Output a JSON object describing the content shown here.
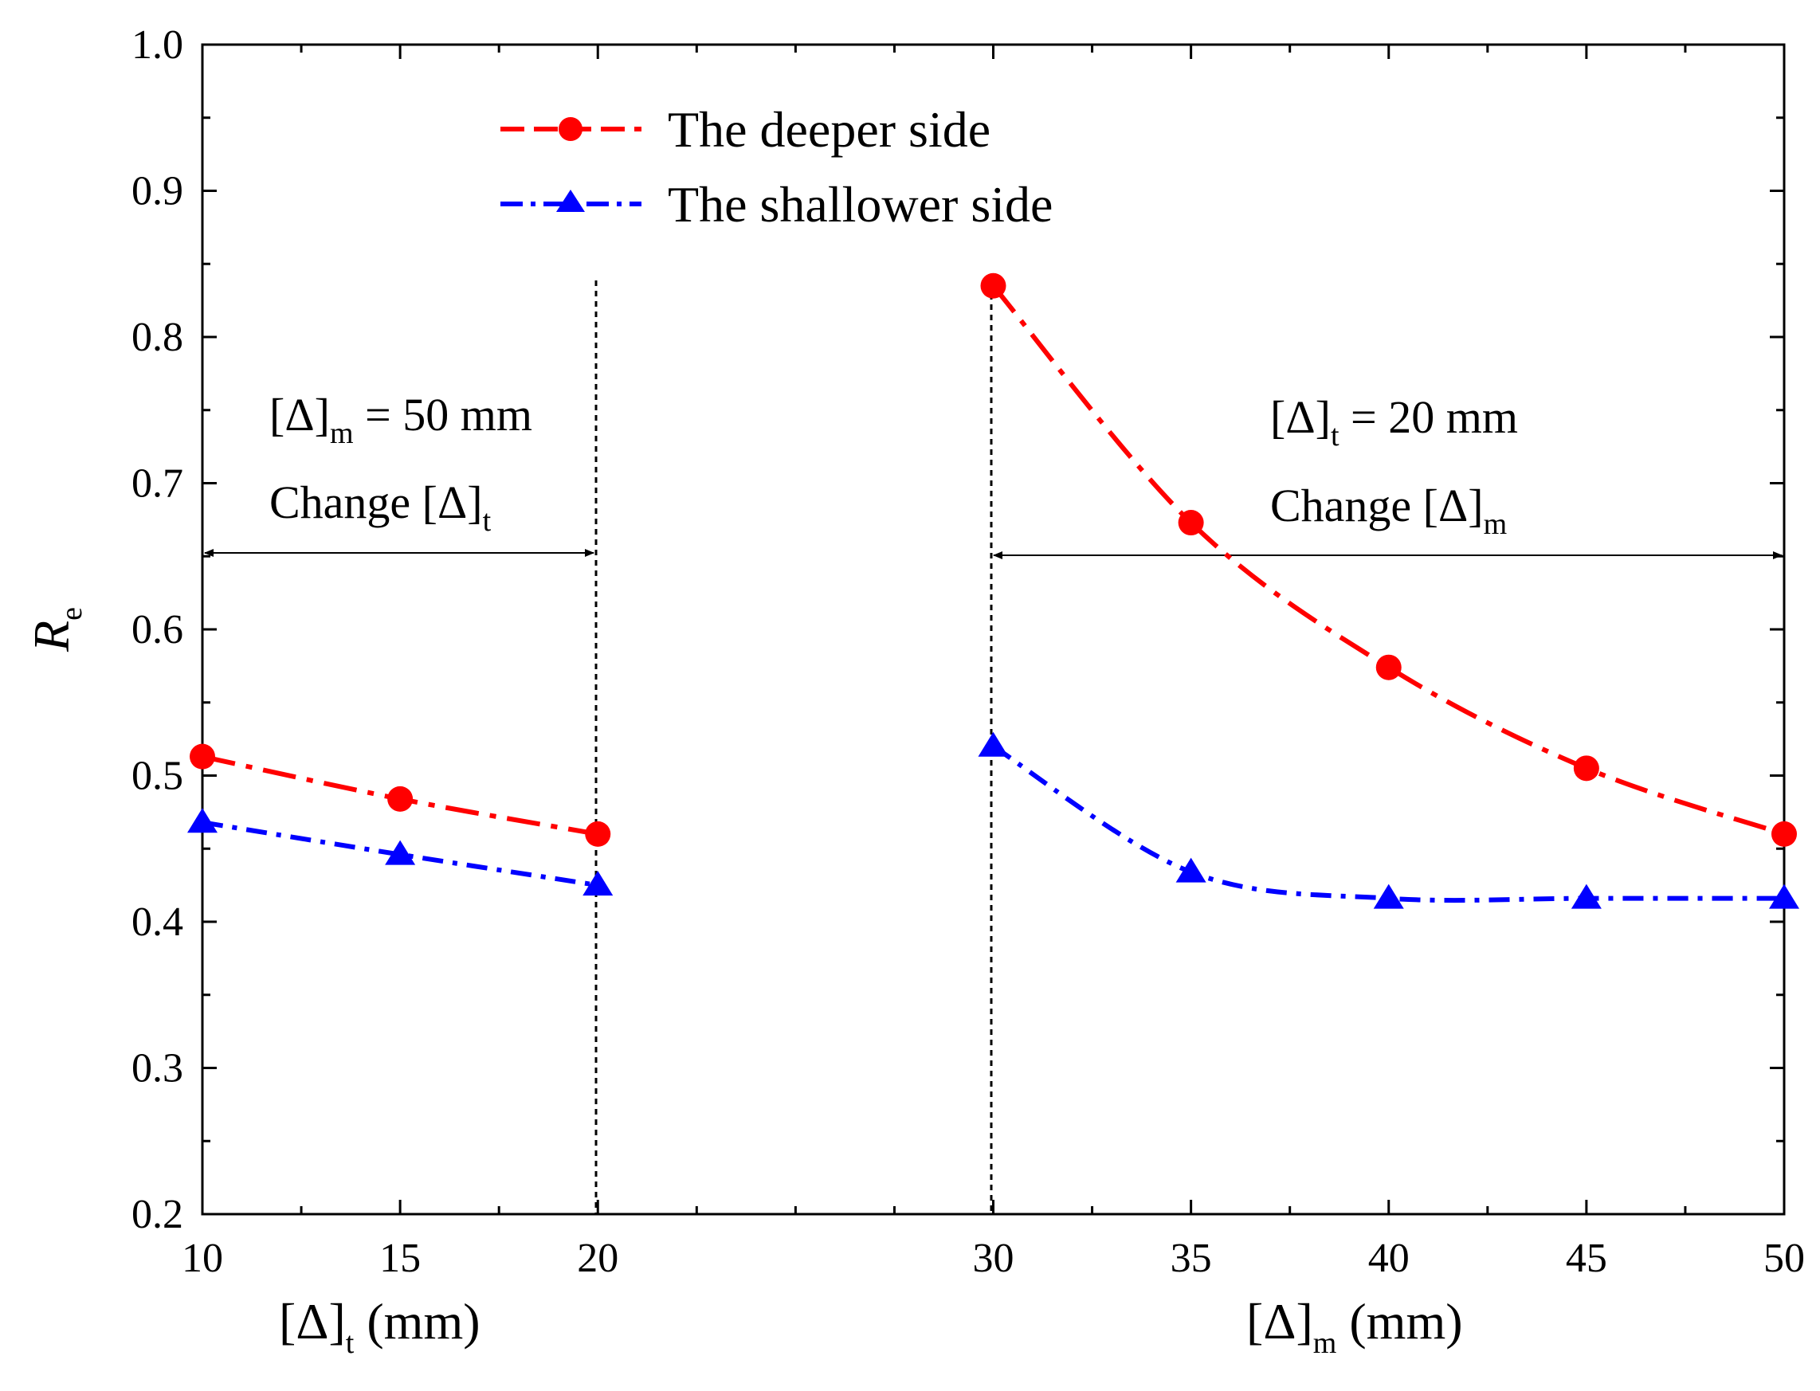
{
  "chart_data": {
    "type": "line",
    "title": "",
    "ylabel": "R",
    "ylabel_sub": "e",
    "ylim": [
      0.2,
      1.0
    ],
    "yticks": [
      "0.2",
      "0.3",
      "0.4",
      "0.5",
      "0.6",
      "0.7",
      "0.8",
      "0.9",
      "1.0"
    ],
    "xticks": [
      "10",
      "15",
      "20",
      "30",
      "35",
      "40",
      "45",
      "50"
    ],
    "xlabel_left": {
      "main": "[Δ]",
      "sub": "t",
      "suffix": " (mm)"
    },
    "xlabel_right": {
      "main": "[Δ]",
      "sub": "m",
      "suffix": " (mm)"
    },
    "legend": {
      "position": "top-left",
      "entries": [
        "The deeper side",
        "The shallower side"
      ]
    },
    "panels": [
      {
        "name": "change-delta-t",
        "x": [
          10,
          15,
          20
        ],
        "series": [
          {
            "name": "The deeper side",
            "color": "#ff0000",
            "marker": "circle",
            "values": [
              0.513,
              0.484,
              0.46
            ]
          },
          {
            "name": "The shallower side",
            "color": "#0000ff",
            "marker": "triangle",
            "values": [
              0.468,
              0.446,
              0.425
            ]
          }
        ]
      },
      {
        "name": "change-delta-m",
        "x": [
          30,
          35,
          40,
          45,
          50
        ],
        "series": [
          {
            "name": "The deeper side",
            "color": "#ff0000",
            "marker": "circle",
            "values": [
              0.835,
              0.673,
              0.574,
              0.505,
              0.46
            ]
          },
          {
            "name": "The shallower side",
            "color": "#0000ff",
            "marker": "triangle",
            "values": [
              0.52,
              0.434,
              0.416,
              0.416,
              0.416
            ]
          }
        ]
      }
    ],
    "annotations": {
      "left": {
        "line1": {
          "main": "[Δ]",
          "sub": "m",
          "suffix": " = 50 mm"
        },
        "line2": {
          "main": "Change [Δ]",
          "sub": "t"
        }
      },
      "right": {
        "line1": {
          "main": "[Δ]",
          "sub": "t",
          "suffix": " = 20 mm"
        },
        "line2": {
          "main": "Change [Δ]",
          "sub": "m"
        }
      }
    }
  }
}
